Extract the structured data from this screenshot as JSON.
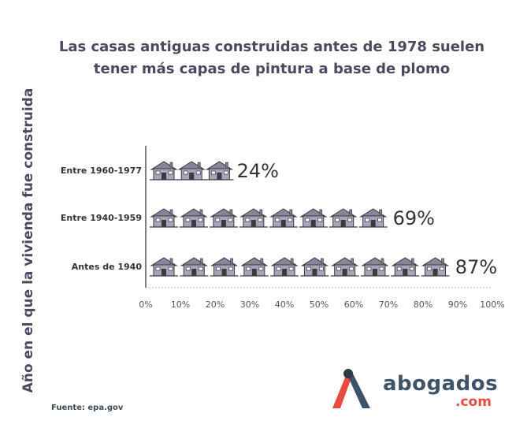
{
  "chart_data": {
    "type": "bar",
    "title": [
      "Las casas antiguas construidas antes de 1978 suelen",
      "tener más capas de pintura a base de plomo"
    ],
    "ylabel": "Año en el que la vivienda fue construida",
    "xlabel": "",
    "categories": [
      "Entre 1960-1977",
      "Entre 1940-1959",
      "Antes de 1940"
    ],
    "values": [
      24,
      69,
      87
    ],
    "data_labels": [
      "24%",
      "69%",
      "87%"
    ],
    "xlim": [
      0,
      100
    ],
    "x_ticks": [
      "0%",
      "10%",
      "20%",
      "30%",
      "40%",
      "50%",
      "60%",
      "70%",
      "80%",
      "90%",
      "100%"
    ],
    "bar_style": "house-icons",
    "grid": false,
    "colors": {
      "house_fill": "#a9a3bd",
      "house_roof": "#8a8399",
      "house_dark": "#3a3a3a",
      "text": "#4a4a5e"
    }
  },
  "source": "Fuente: epa.gov",
  "logo": {
    "word": "abogados",
    "domain": ".com",
    "colors": {
      "red": "#e74c3c",
      "blue": "#3e5367"
    }
  }
}
